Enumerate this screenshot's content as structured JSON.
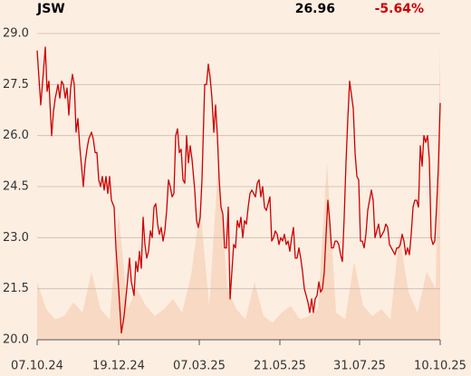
{
  "chart_data": {
    "type": "line",
    "title": "JSW",
    "price": 26.96,
    "change": {
      "value": -5.64,
      "label": "-5.64%"
    },
    "xlim": [
      0,
      445
    ],
    "ylim": [
      20,
      29
    ],
    "xticks": [
      {
        "value": 0,
        "label": "07.10.24"
      },
      {
        "value": 90,
        "label": "19.12.24"
      },
      {
        "value": 179,
        "label": "07.03.25"
      },
      {
        "value": 268,
        "label": "21.05.25"
      },
      {
        "value": 356,
        "label": "31.07.25"
      },
      {
        "value": 445,
        "label": "10.10.25"
      }
    ],
    "yticks": [
      {
        "value": 20,
        "label": "20.0"
      },
      {
        "value": 21.5,
        "label": "21.5"
      },
      {
        "value": 23,
        "label": "23.0"
      },
      {
        "value": 24.5,
        "label": "24.5"
      },
      {
        "value": 26,
        "label": "26.0"
      },
      {
        "value": 27.5,
        "label": "27.5"
      },
      {
        "value": 29,
        "label": "29.0"
      }
    ],
    "grid": true,
    "series": [
      {
        "color": "#cc0000",
        "x": [
          0,
          2,
          4,
          7,
          9,
          11,
          13,
          15,
          16,
          18,
          20,
          23,
          25,
          27,
          29,
          31,
          33,
          35,
          37,
          39,
          41,
          43,
          45,
          47,
          49,
          51,
          53,
          55,
          57,
          60,
          62,
          64,
          66,
          68,
          70,
          72,
          74,
          76,
          78,
          80,
          82,
          85,
          87,
          90,
          93,
          96,
          99,
          102,
          104,
          107,
          109,
          111,
          113,
          115,
          117,
          119,
          121,
          123,
          125,
          127,
          129,
          131,
          133,
          135,
          137,
          139,
          141,
          143,
          145,
          147,
          149,
          151,
          153,
          155,
          157,
          159,
          161,
          163,
          165,
          167,
          169,
          171,
          174,
          176,
          178,
          180,
          182,
          185,
          187,
          189,
          191,
          193,
          195,
          197,
          199,
          201,
          203,
          205,
          207,
          209,
          211,
          213,
          215,
          217,
          219,
          221,
          223,
          225,
          227,
          229,
          231,
          233,
          235,
          237,
          239,
          241,
          243,
          245,
          247,
          249,
          251,
          253,
          255,
          257,
          259,
          261,
          263,
          265,
          267,
          269,
          271,
          273,
          275,
          277,
          279,
          281,
          283,
          285,
          287,
          289,
          291,
          293,
          295,
          297,
          299,
          301,
          303,
          305,
          307,
          309,
          311,
          313,
          315,
          317,
          319,
          321,
          323,
          325,
          327,
          329,
          331,
          333,
          335,
          337,
          339,
          341,
          343,
          345,
          347,
          349,
          351,
          353,
          355,
          357,
          359,
          361,
          363,
          365,
          367,
          369,
          371,
          373,
          375,
          377,
          379,
          381,
          383,
          385,
          387,
          389,
          391,
          393,
          395,
          397,
          399,
          401,
          403,
          405,
          407,
          409,
          411,
          413,
          415,
          417,
          419,
          421,
          423,
          425,
          427,
          429,
          431,
          433,
          435,
          437,
          439,
          441,
          443,
          445
        ],
        "values": [
          28.5,
          27.7,
          26.9,
          27.9,
          28.6,
          27.3,
          27.6,
          26.5,
          26.0,
          26.7,
          27.1,
          27.5,
          27.1,
          27.6,
          27.5,
          27.1,
          27.4,
          26.6,
          27.4,
          27.8,
          27.5,
          26.1,
          26.5,
          25.7,
          25.1,
          24.5,
          25.2,
          25.6,
          25.9,
          26.1,
          25.9,
          25.5,
          25.5,
          24.7,
          24.5,
          24.8,
          24.4,
          24.8,
          24.3,
          24.8,
          24.1,
          23.9,
          22.7,
          21.5,
          20.2,
          20.7,
          21.5,
          22.4,
          21.7,
          21.3,
          22.3,
          22.0,
          22.6,
          22.1,
          23.6,
          22.8,
          22.4,
          22.6,
          23.2,
          23.0,
          23.9,
          24.0,
          23.4,
          23.1,
          23.3,
          22.9,
          23.2,
          23.8,
          24.7,
          24.5,
          24.2,
          24.3,
          26.0,
          26.2,
          25.5,
          25.6,
          24.7,
          24.6,
          26.0,
          25.2,
          25.7,
          25.3,
          24.4,
          23.5,
          23.3,
          23.6,
          24.7,
          27.5,
          27.5,
          28.1,
          27.7,
          27.1,
          26.1,
          26.9,
          26.0,
          24.7,
          23.9,
          23.7,
          22.7,
          22.7,
          23.9,
          21.2,
          22.0,
          22.8,
          22.7,
          23.5,
          23.3,
          23.6,
          23.0,
          23.5,
          23.4,
          23.9,
          24.3,
          24.4,
          24.3,
          24.2,
          24.6,
          24.7,
          24.2,
          24.5,
          23.9,
          23.8,
          24.0,
          24.2,
          22.9,
          23.0,
          23.2,
          23.1,
          22.8,
          23.0,
          22.9,
          23.1,
          22.8,
          22.9,
          22.6,
          23.0,
          23.3,
          22.4,
          22.4,
          22.7,
          22.4,
          22.0,
          21.5,
          21.3,
          21.1,
          20.8,
          21.2,
          20.8,
          21.2,
          21.3,
          21.7,
          21.4,
          21.5,
          22.0,
          23.1,
          24.1,
          23.5,
          22.7,
          22.7,
          22.9,
          22.9,
          22.8,
          22.5,
          22.3,
          23.6,
          25.2,
          26.5,
          27.6,
          27.2,
          26.8,
          25.5,
          24.8,
          24.7,
          22.9,
          22.9,
          22.7,
          23.1,
          23.8,
          24.1,
          24.4,
          24.1,
          23.0,
          23.2,
          23.4,
          23.0,
          23.1,
          23.2,
          23.4,
          23.3,
          22.8,
          22.7,
          22.6,
          22.5,
          22.7,
          22.7,
          22.8,
          23.1,
          22.9,
          22.5,
          22.7,
          22.5,
          23.1,
          23.9,
          24.1,
          24.1,
          23.9,
          25.7,
          25.1,
          26.0,
          25.8,
          26.0,
          25.3,
          23.0,
          22.8,
          22.9,
          23.9,
          25.1,
          26.96
        ]
      }
    ],
    "volume": {
      "color": "#f8d9c3",
      "x": [
        0,
        10,
        20,
        30,
        40,
        50,
        60,
        70,
        80,
        90,
        100,
        110,
        120,
        130,
        140,
        150,
        160,
        170,
        180,
        190,
        200,
        210,
        220,
        230,
        240,
        250,
        260,
        270,
        280,
        290,
        300,
        310,
        320,
        330,
        340,
        350,
        360,
        370,
        380,
        390,
        400,
        410,
        420,
        430,
        440,
        445
      ],
      "values": [
        21.7,
        20.9,
        20.6,
        20.7,
        21.1,
        20.8,
        22.0,
        20.9,
        20.6,
        23.7,
        20.9,
        21.5,
        21.0,
        20.7,
        20.9,
        21.2,
        20.8,
        21.9,
        23.9,
        21.0,
        25.2,
        21.5,
        20.9,
        20.6,
        21.7,
        20.7,
        20.5,
        20.8,
        21.0,
        20.6,
        20.7,
        20.9,
        25.2,
        20.8,
        20.6,
        22.3,
        21.0,
        20.7,
        20.9,
        20.6,
        23.1,
        21.4,
        20.8,
        22.0,
        21.5,
        28.7
      ]
    }
  }
}
